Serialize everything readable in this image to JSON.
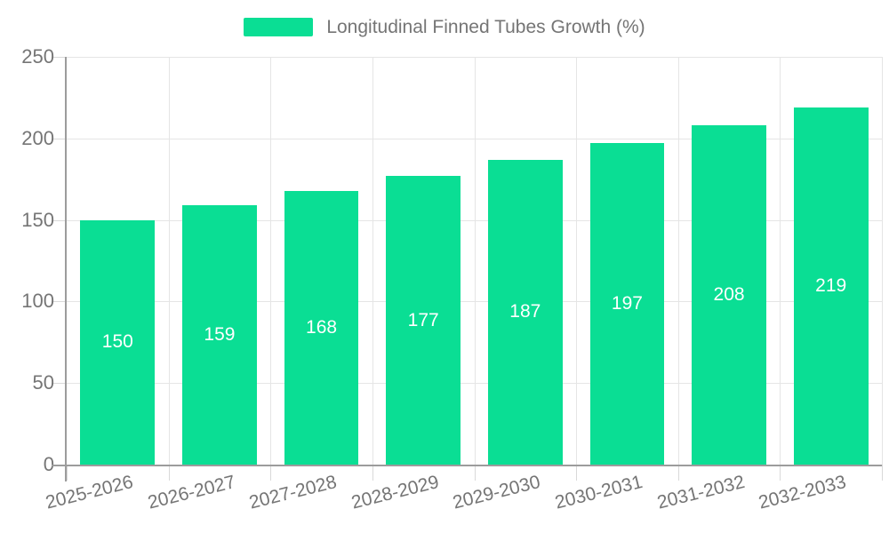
{
  "legend": {
    "items": [
      {
        "label": "Longitudinal Finned Tubes Growth (%)",
        "color": "#0ade94"
      }
    ]
  },
  "chart_data": {
    "type": "bar",
    "title": "",
    "categories": [
      "2025-2026",
      "2026-2027",
      "2027-2028",
      "2028-2029",
      "2029-2030",
      "2030-2031",
      "2031-2032",
      "2032-2033"
    ],
    "series": [
      {
        "name": "Longitudinal Finned Tubes Growth (%)",
        "values": [
          150,
          159,
          168,
          177,
          187,
          197,
          208,
          219
        ],
        "color": "#0ade94"
      }
    ],
    "xlabel": "",
    "ylabel": "",
    "ylim": [
      0,
      250
    ],
    "yticks": [
      0,
      50,
      100,
      150,
      200,
      250
    ],
    "grid": true,
    "legend_position": "top",
    "bar_labels_visible": true,
    "bar_label_color": "#ffffff"
  },
  "colors": {
    "background": "#ffffff",
    "bar": "#0ade94",
    "grid": "#e5e5e5",
    "tick": "#d9d9d9",
    "axis": "#9c9c9c",
    "text": "#757575"
  }
}
